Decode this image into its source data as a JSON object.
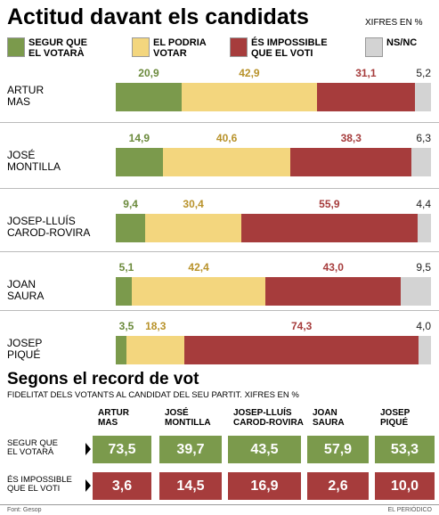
{
  "chart_data": {
    "type": "stacked-bar-horizontal",
    "title": "Actitud davant els candidats",
    "subtitle": "XIFRES EN %",
    "categories": [
      "ARTUR\nMAS",
      "JOSÉ\nMONTILLA",
      "JOSEP-LLUÍS\nCAROD-ROVIRA",
      "JOAN\nSAURA",
      "JOSEP\nPIQUÉ"
    ],
    "xlim": [
      0,
      100
    ],
    "series": [
      {
        "name": "SEGUR QUE\nEL VOTARÀ",
        "color": "#7b9a4c",
        "label_color": "#6b8a3c",
        "values": [
          20.9,
          14.9,
          9.4,
          5.1,
          3.5
        ],
        "value_labels": [
          "20,9",
          "14,9",
          "9,4",
          "5,1",
          "3,5"
        ]
      },
      {
        "name": "EL PODRIA\nVOTAR",
        "color": "#f3d67e",
        "label_color": "#b8922a",
        "values": [
          42.9,
          40.6,
          30.4,
          42.4,
          18.3
        ],
        "value_labels": [
          "42,9",
          "40,6",
          "30,4",
          "42,4",
          "18,3"
        ]
      },
      {
        "name": "ÉS IMPOSSIBLE\nQUE EL VOTI",
        "color": "#a63c3c",
        "label_color": "#a63c3c",
        "values": [
          31.1,
          38.3,
          55.9,
          43.0,
          74.3
        ],
        "value_labels": [
          "31,1",
          "38,3",
          "55,9",
          "43,0",
          "74,3"
        ]
      },
      {
        "name": "NS/NC",
        "color": "#d3d3d3",
        "label_color": "#222222",
        "values": [
          5.2,
          6.3,
          4.4,
          9.5,
          4.0
        ],
        "value_labels": [
          "5,2",
          "6,3",
          "4,4",
          "9,5",
          "4,0"
        ]
      }
    ]
  },
  "table": {
    "title": "Segons el record de vot",
    "subtitle": "FIDELITAT DELS VOTANTS AL CANDIDAT DEL SEU PARTIT. XIFRES EN %",
    "columns": [
      "ARTUR\nMAS",
      "JOSÉ\nMONTILLA",
      "JOSEP-LLUÍS\nCAROD-ROVIRA",
      "JOAN\nSAURA",
      "JOSEP\nPIQUÉ"
    ],
    "rows": [
      {
        "label": "SEGUR QUE\nEL VOTARÀ",
        "color": "#7b9a4c",
        "cells": [
          "73,5",
          "39,7",
          "43,5",
          "57,9",
          "53,3"
        ]
      },
      {
        "label": "ÉS IMPOSSIBLE\nQUE EL VOTI",
        "color": "#a63c3c",
        "cells": [
          "3,6",
          "14,5",
          "16,9",
          "2,6",
          "10,0"
        ]
      }
    ]
  },
  "footer": {
    "source": "Font: Gesop",
    "credit": "EL PERIÓDICO"
  }
}
